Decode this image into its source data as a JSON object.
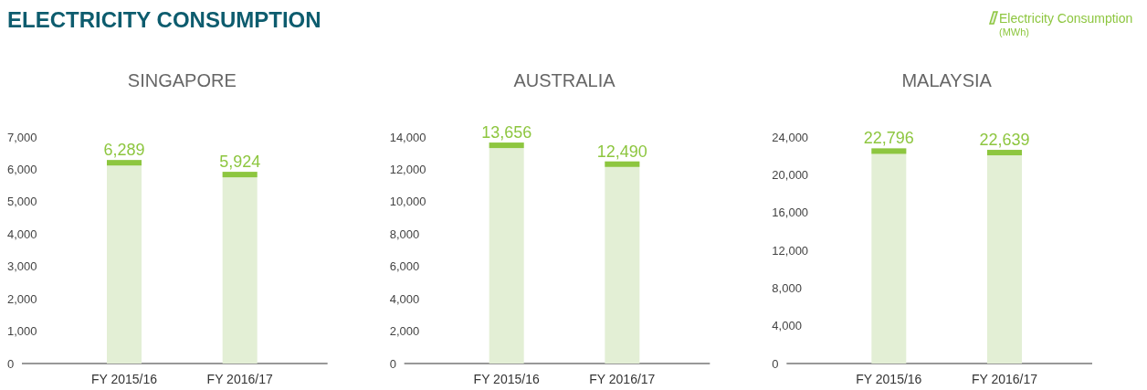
{
  "chart_data": [
    {
      "type": "bar",
      "title": "SINGAPORE",
      "annotations": [
        "ELECTRICITY CONSUMPTION"
      ],
      "categories": [
        "FY 2015/16",
        "FY 2016/17"
      ],
      "series": [
        {
          "color": "#e3efd5",
          "values": [
            6289,
            5924
          ]
        }
      ],
      "ylim": [
        0,
        7000
      ],
      "yticks": [
        {
          "value": 0,
          "label": "0"
        },
        {
          "value": 1000,
          "label": "1,000"
        },
        {
          "value": 2000,
          "label": "2,000"
        },
        {
          "value": 3000,
          "label": "3,000"
        },
        {
          "value": 4000,
          "label": "4,000"
        },
        {
          "value": 5000,
          "label": "5,000"
        },
        {
          "value": 6000,
          "label": "6,000"
        },
        {
          "value": 7000,
          "label": "7,000"
        }
      ],
      "value_labels": [
        "6,289",
        "5,924"
      ]
    },
    {
      "type": "bar",
      "title": "AUSTRALIA",
      "categories": [
        "FY 2015/16",
        "FY 2016/17"
      ],
      "series": [
        {
          "color": "#e3efd5",
          "values": [
            13656,
            12490
          ]
        }
      ],
      "ylim": [
        0,
        14000
      ],
      "yticks": [
        {
          "value": 0,
          "label": "0"
        },
        {
          "value": 2000,
          "label": "2,000"
        },
        {
          "value": 4000,
          "label": "4,000"
        },
        {
          "value": 6000,
          "label": "6,000"
        },
        {
          "value": 8000,
          "label": "8,000"
        },
        {
          "value": 10000,
          "label": "10,000"
        },
        {
          "value": 12000,
          "label": "12,000"
        },
        {
          "value": 14000,
          "label": "14,000"
        }
      ],
      "value_labels": [
        "13,656",
        "12,490"
      ]
    },
    {
      "type": "bar",
      "title": "MALAYSIA",
      "legend_title": "(MWh)",
      "legend": "top right",
      "categories": [
        "FY 2015/16",
        "FY 2016/17"
      ],
      "series": [
        {
          "name": "Electricity Consumption",
          "color": "#e3efd5",
          "values": [
            22796,
            22639
          ]
        }
      ],
      "ylim": [
        0,
        24000
      ],
      "yticks": [
        {
          "value": 0,
          "label": "0"
        },
        {
          "value": 4000,
          "label": "4,000"
        },
        {
          "value": 8000,
          "label": "8,000"
        },
        {
          "value": 12000,
          "label": "12,000"
        },
        {
          "value": 16000,
          "label": "16,000"
        },
        {
          "value": 20000,
          "label": "20,000"
        },
        {
          "value": 24000,
          "label": "24,000"
        }
      ],
      "value_labels": [
        "22,796",
        "22,639"
      ]
    }
  ]
}
